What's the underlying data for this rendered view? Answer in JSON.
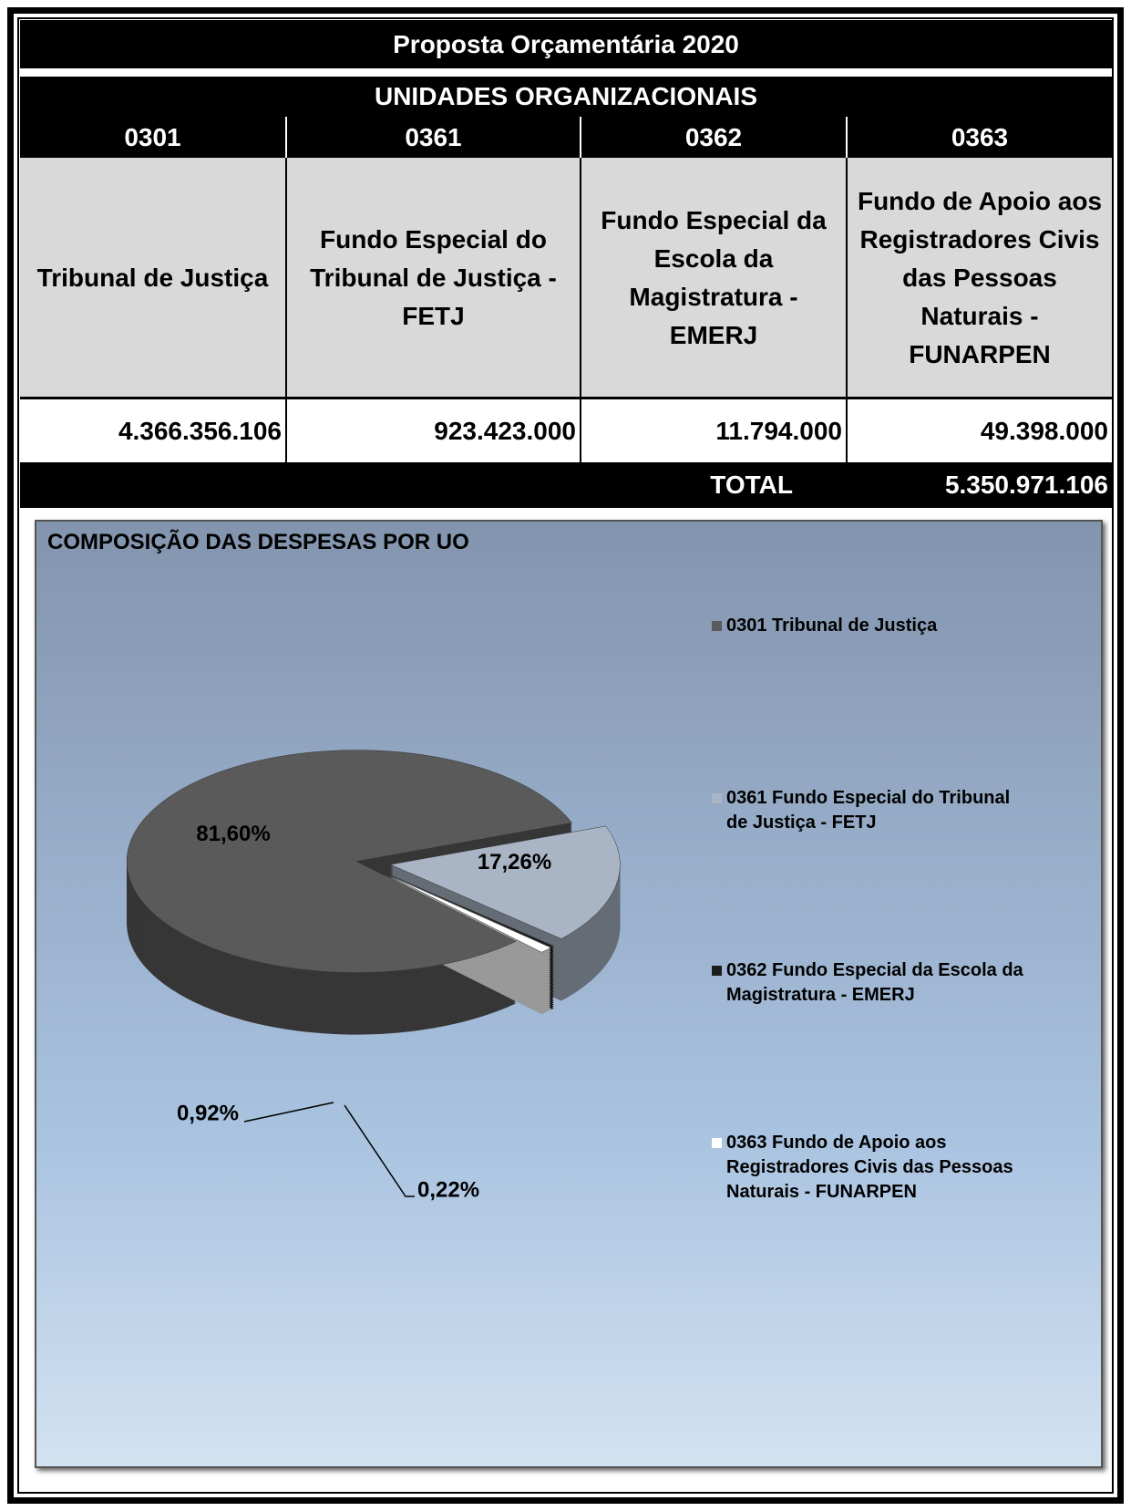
{
  "table": {
    "title": "Proposta Orçamentária 2020",
    "subtitle": "UNIDADES ORGANIZACIONAIS",
    "codes": [
      "0301",
      "0361",
      "0362",
      "0363"
    ],
    "names": [
      "Tribunal de Justiça",
      "Fundo Especial do Tribunal de Justiça - FETJ",
      "Fundo Especial da Escola da Magistratura - EMERJ",
      "Fundo de Apoio aos Registradores Civis das Pessoas Naturais - FUNARPEN"
    ],
    "values": [
      "4.366.356.106",
      "923.423.000",
      "11.794.000",
      "49.398.000"
    ],
    "total_label": "TOTAL",
    "total": "5.350.971.106"
  },
  "chart_data": {
    "type": "pie",
    "title": "COMPOSIÇÃO DAS DESPESAS POR UO",
    "categories": [
      "0301 Tribunal de Justiça",
      "0361 Fundo Especial do Tribunal de Justiça - FETJ",
      "0362 Fundo Especial da Escola da Magistratura - EMERJ",
      "0363 Fundo de Apoio aos Registradores Civis das Pessoas Naturais - FUNARPEN"
    ],
    "values": [
      81.6,
      17.26,
      0.22,
      0.92
    ],
    "value_labels": [
      "81,60%",
      "17,26%",
      "0,22%",
      "0,92%"
    ],
    "colors": [
      "#5a5a5a",
      "#a9b4c4",
      "#1c1c1c",
      "#ffffff"
    ],
    "legend": "right"
  }
}
